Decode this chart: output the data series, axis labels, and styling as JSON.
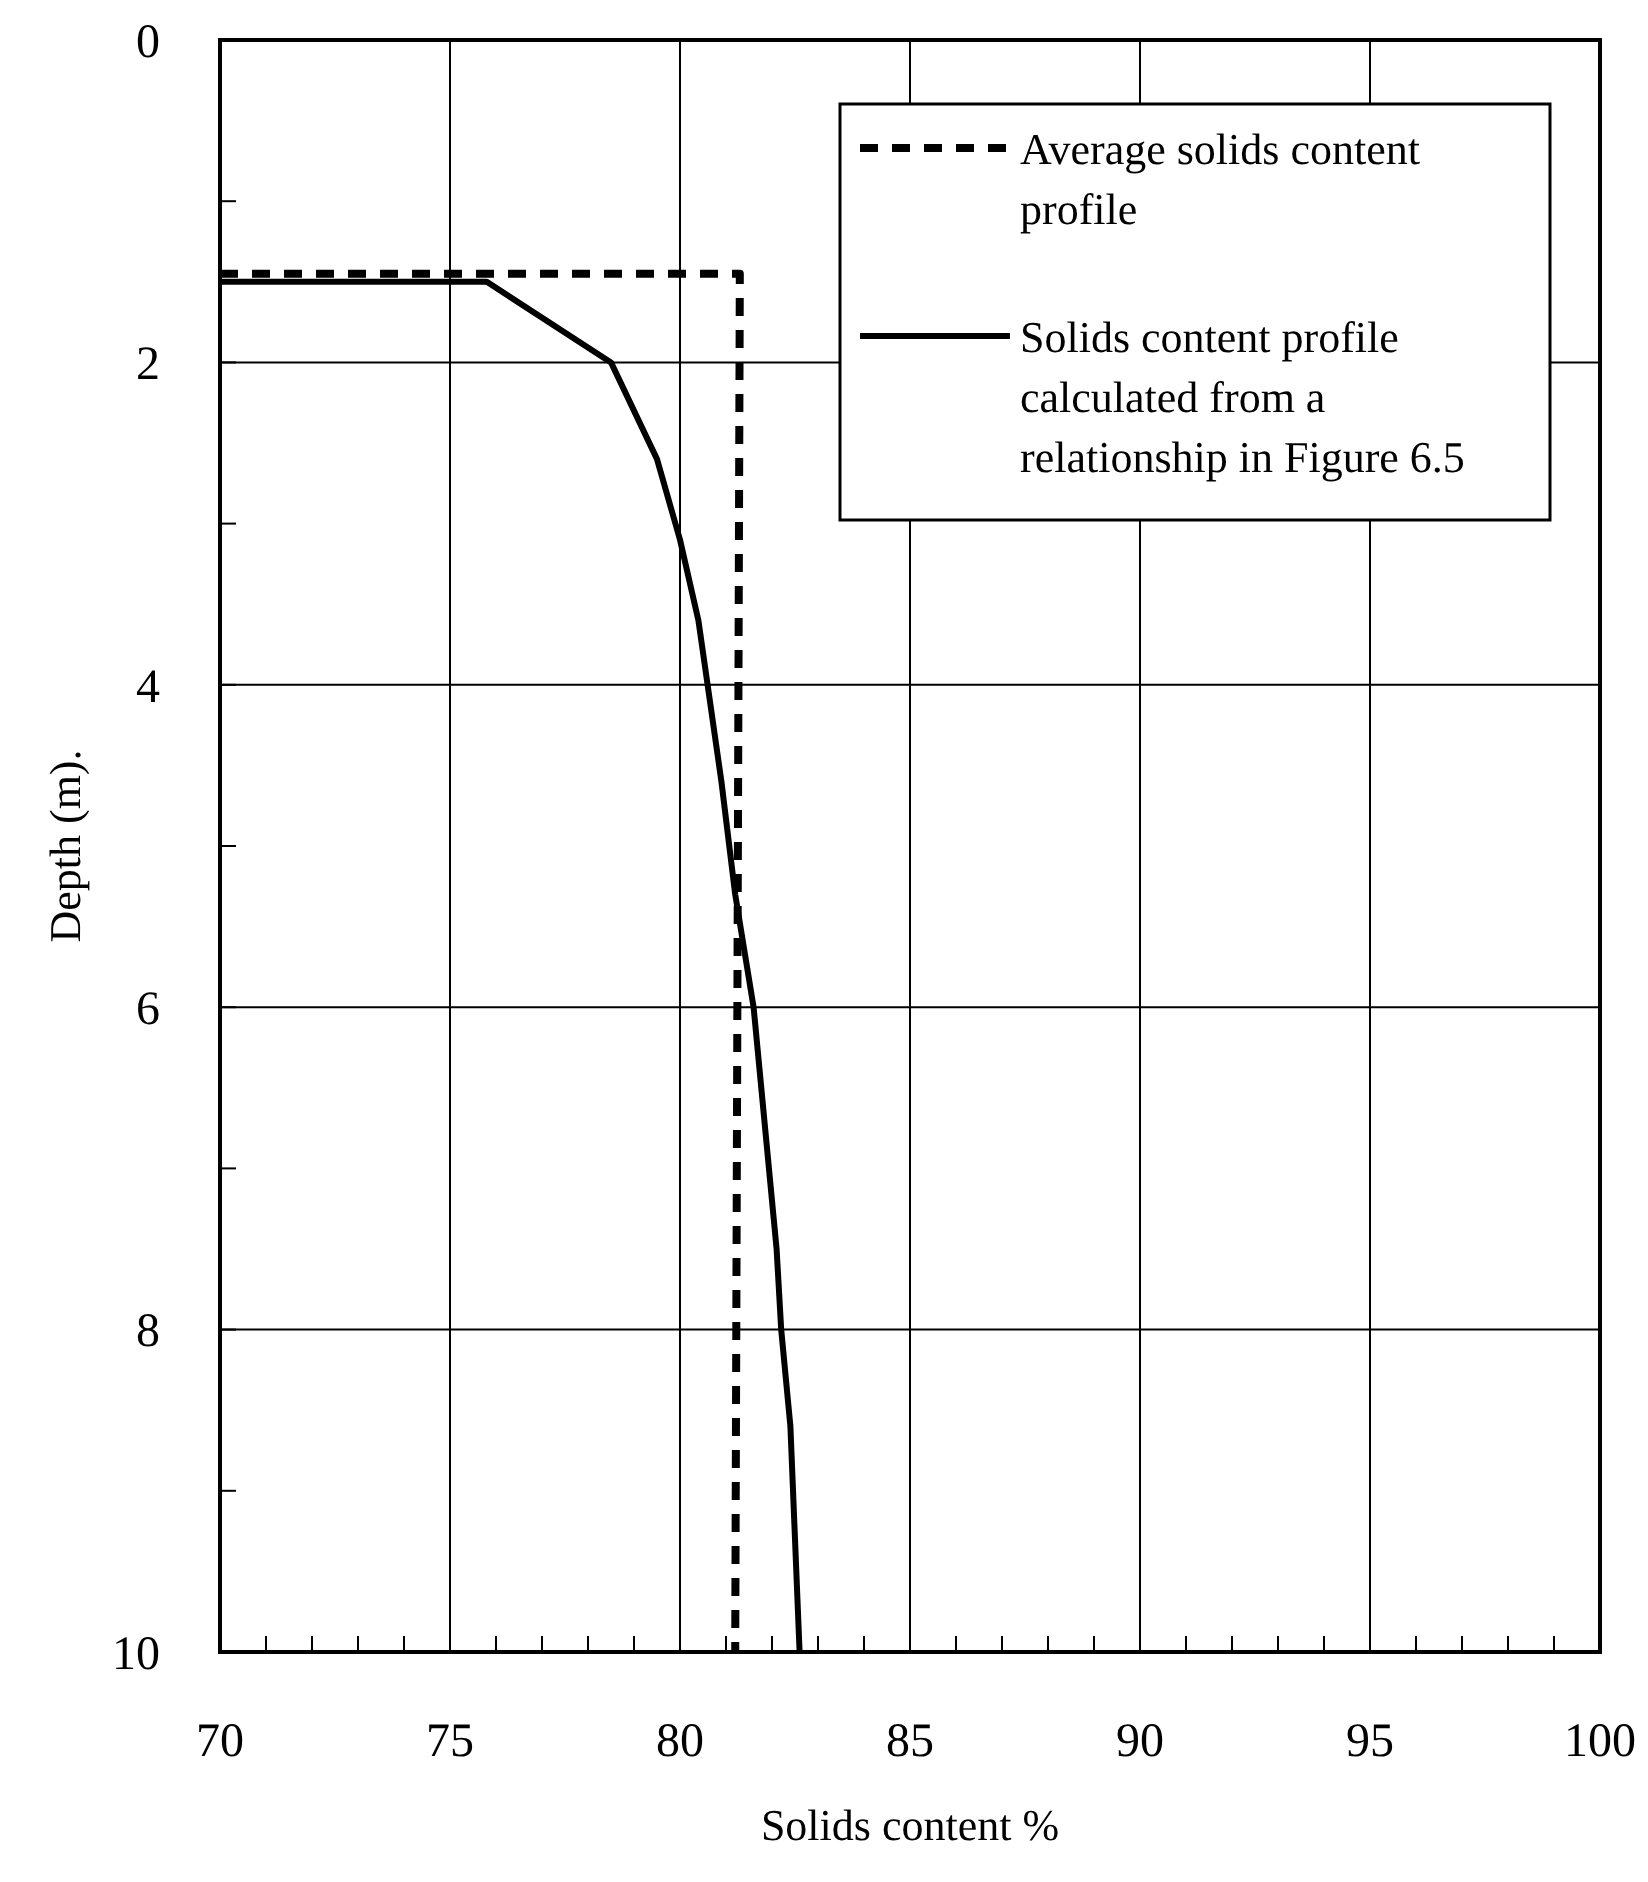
{
  "chart_data": {
    "type": "line",
    "xlabel": "Solids content %",
    "ylabel": "Depth (m).",
    "xlim": [
      70,
      100
    ],
    "xticks": [
      70,
      {
        "value": 71,
        "label": null
      },
      {
        "value": 72,
        "label": null
      },
      {
        "value": 73,
        "label": null
      },
      {
        "value": 74,
        "label": null
      },
      75,
      {
        "value": 76,
        "label": null
      },
      {
        "value": 77,
        "label": null
      },
      {
        "value": 78,
        "label": null
      },
      {
        "value": 79,
        "label": null
      },
      80,
      {
        "value": 81,
        "label": null
      },
      {
        "value": 82,
        "label": null
      },
      {
        "value": 83,
        "label": null
      },
      {
        "value": 84,
        "label": null
      },
      85,
      {
        "value": 86,
        "label": null
      },
      {
        "value": 87,
        "label": null
      },
      {
        "value": 88,
        "label": null
      },
      {
        "value": 89,
        "label": null
      },
      90,
      {
        "value": 91,
        "label": null
      },
      {
        "value": 92,
        "label": null
      },
      {
        "value": 93,
        "label": null
      },
      {
        "value": 94,
        "label": null
      },
      95,
      {
        "value": 96,
        "label": null
      },
      {
        "value": 97,
        "label": null
      },
      {
        "value": 98,
        "label": null
      },
      {
        "value": 99,
        "label": null
      },
      100
    ],
    "ylim": [
      10,
      0
    ],
    "yticks": [
      0,
      {
        "value": 1,
        "label": null
      },
      2,
      {
        "value": 3,
        "label": null
      },
      4,
      {
        "value": 5,
        "label": null
      },
      6,
      {
        "value": 7,
        "label": null
      },
      8,
      {
        "value": 9,
        "label": null
      },
      10
    ],
    "grid": true,
    "legend": "top right",
    "series": [
      {
        "name": "Average solids content profile",
        "color": "#000000",
        "line_style": "dashed",
        "x": [
          70,
          81.3,
          81.3,
          81.2
        ],
        "values": [
          1.45,
          1.45,
          1.5,
          10
        ]
      },
      {
        "name": "Solids content profile calculated from a relationship in Figure 6.5",
        "color": "#000000",
        "line_style": "solid",
        "x": [
          70,
          75.8,
          78.5,
          79.5,
          80,
          80.4,
          80.9,
          81.2,
          81.6,
          82.1,
          82.2,
          82.4,
          82.6
        ],
        "values": [
          1.5,
          1.5,
          2.0,
          2.6,
          3.1,
          3.6,
          4.6,
          5.3,
          6,
          7.5,
          8,
          8.6,
          10
        ]
      }
    ]
  }
}
